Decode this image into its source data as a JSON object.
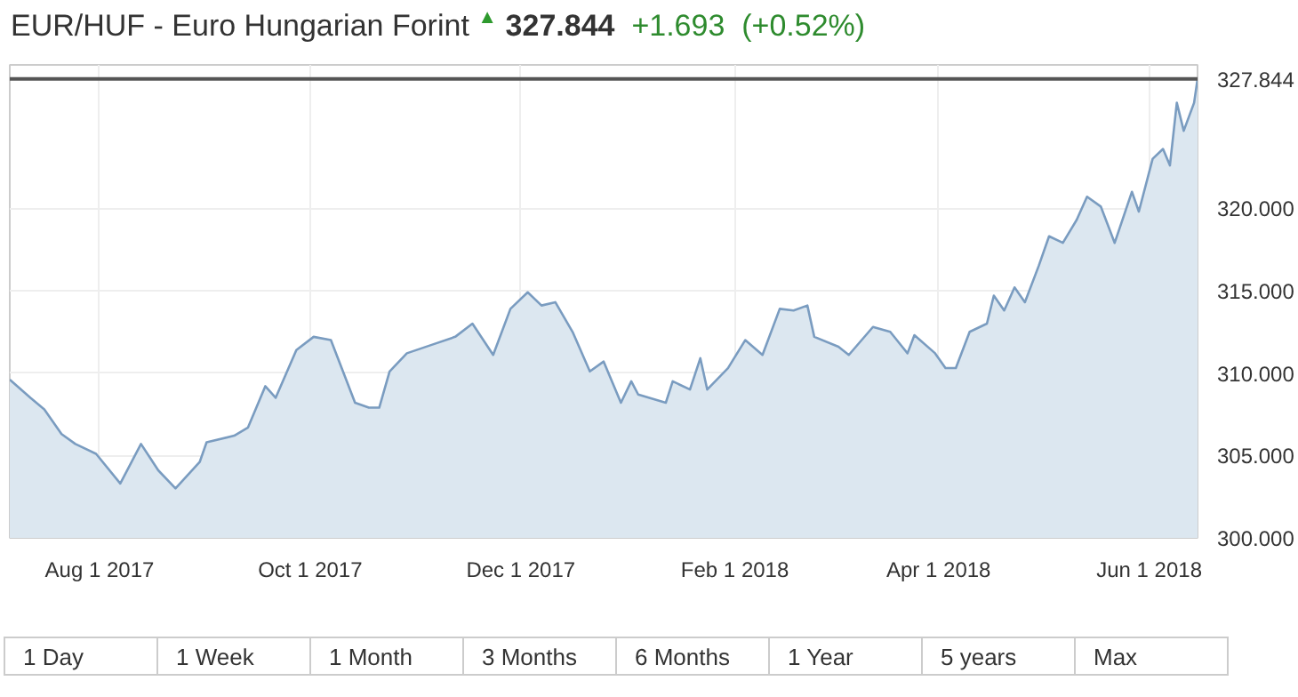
{
  "chart_data": {
    "type": "area",
    "title": "EUR/HUF - Euro Hungarian Forint",
    "annotations": [
      "▲",
      "327.844",
      "+1.693",
      "(+0.52%)",
      "1 Day",
      "1 Week",
      "1 Month",
      "3 Months",
      "6 Months",
      "1 Year",
      "5 years",
      "Max"
    ],
    "x": [
      "2017-07-06",
      "2017-07-12",
      "2017-07-16",
      "2017-07-21",
      "2017-07-25",
      "2017-07-31",
      "2017-08-07",
      "2017-08-13",
      "2017-08-18",
      "2017-08-23",
      "2017-08-30",
      "2017-09-01",
      "2017-09-09",
      "2017-09-13",
      "2017-09-18",
      "2017-09-21",
      "2017-09-27",
      "2017-10-02",
      "2017-10-07",
      "2017-10-14",
      "2017-10-18",
      "2017-10-21",
      "2017-10-24",
      "2017-10-29",
      "2017-11-05",
      "2017-11-12",
      "2017-11-17",
      "2017-11-23",
      "2017-11-28",
      "2017-12-03",
      "2017-12-07",
      "2017-12-11",
      "2017-12-16",
      "2017-12-21",
      "2017-12-25",
      "2017-12-30",
      "2018-01-02",
      "2018-01-04",
      "2018-01-12",
      "2018-01-14",
      "2018-01-19",
      "2018-01-22",
      "2018-01-24",
      "2018-01-30",
      "2018-02-04",
      "2018-02-09",
      "2018-02-14",
      "2018-02-18",
      "2018-02-22",
      "2018-02-24",
      "2018-03-03",
      "2018-03-06",
      "2018-03-13",
      "2018-03-18",
      "2018-03-23",
      "2018-03-25",
      "2018-03-31",
      "2018-04-03",
      "2018-04-06",
      "2018-04-10",
      "2018-04-15",
      "2018-04-17",
      "2018-04-20",
      "2018-04-23",
      "2018-04-26",
      "2018-04-30",
      "2018-05-03",
      "2018-05-07",
      "2018-05-11",
      "2018-05-14",
      "2018-05-18",
      "2018-05-22",
      "2018-05-27",
      "2018-05-29",
      "2018-06-02",
      "2018-06-05",
      "2018-06-07",
      "2018-06-09",
      "2018-06-11",
      "2018-06-14",
      "2018-06-15"
    ],
    "series": [
      {
        "color": "#7a9cc0",
        "values": [
          309.6,
          308.5,
          307.8,
          306.3,
          305.7,
          305.1,
          303.3,
          305.7,
          304.1,
          303.0,
          304.6,
          305.8,
          306.2,
          306.7,
          309.2,
          308.5,
          311.4,
          312.2,
          312.0,
          308.2,
          307.9,
          307.9,
          310.1,
          311.2,
          311.7,
          312.2,
          313.0,
          311.1,
          313.9,
          314.9,
          314.1,
          314.3,
          312.5,
          310.1,
          310.7,
          308.2,
          309.5,
          308.7,
          308.2,
          309.5,
          309.0,
          310.9,
          309.0,
          310.3,
          312.0,
          311.1,
          313.9,
          313.8,
          314.1,
          312.2,
          311.6,
          311.1,
          312.8,
          312.5,
          311.2,
          312.3,
          311.2,
          310.3,
          310.3,
          312.5,
          313.0,
          314.7,
          313.8,
          315.2,
          314.3,
          316.5,
          318.3,
          317.9,
          319.3,
          320.7,
          320.1,
          317.9,
          321.0,
          319.8,
          323.0,
          323.6,
          322.6,
          326.4,
          324.7,
          326.4,
          327.844
        ]
      }
    ],
    "xlim": [
      "2017-07-06",
      "2018-06-15"
    ],
    "xticks": [
      {
        "value": "2017-08-01",
        "label": "Aug 1 2017"
      },
      {
        "value": "2017-10-01",
        "label": "Oct 1 2017"
      },
      {
        "value": "2017-12-01",
        "label": "Dec 1 2017"
      },
      {
        "value": "2018-02-01",
        "label": "Feb 1 2018"
      },
      {
        "value": "2018-04-01",
        "label": "Apr 1 2018"
      },
      {
        "value": "2018-06-01",
        "label": "Jun 1 2018"
      }
    ],
    "ylim": [
      300,
      328.7
    ],
    "yticks": [
      {
        "value": 300,
        "label": "300.000"
      },
      {
        "value": 305,
        "label": "305.000"
      },
      {
        "value": 310,
        "label": "310.000"
      },
      {
        "value": 315,
        "label": "315.000"
      },
      {
        "value": 320,
        "label": "320.000"
      }
    ],
    "ref_lines": [
      {
        "axis": "y",
        "value": 327.844,
        "label": "327.844",
        "color": "#555555"
      }
    ],
    "grid": true
  }
}
